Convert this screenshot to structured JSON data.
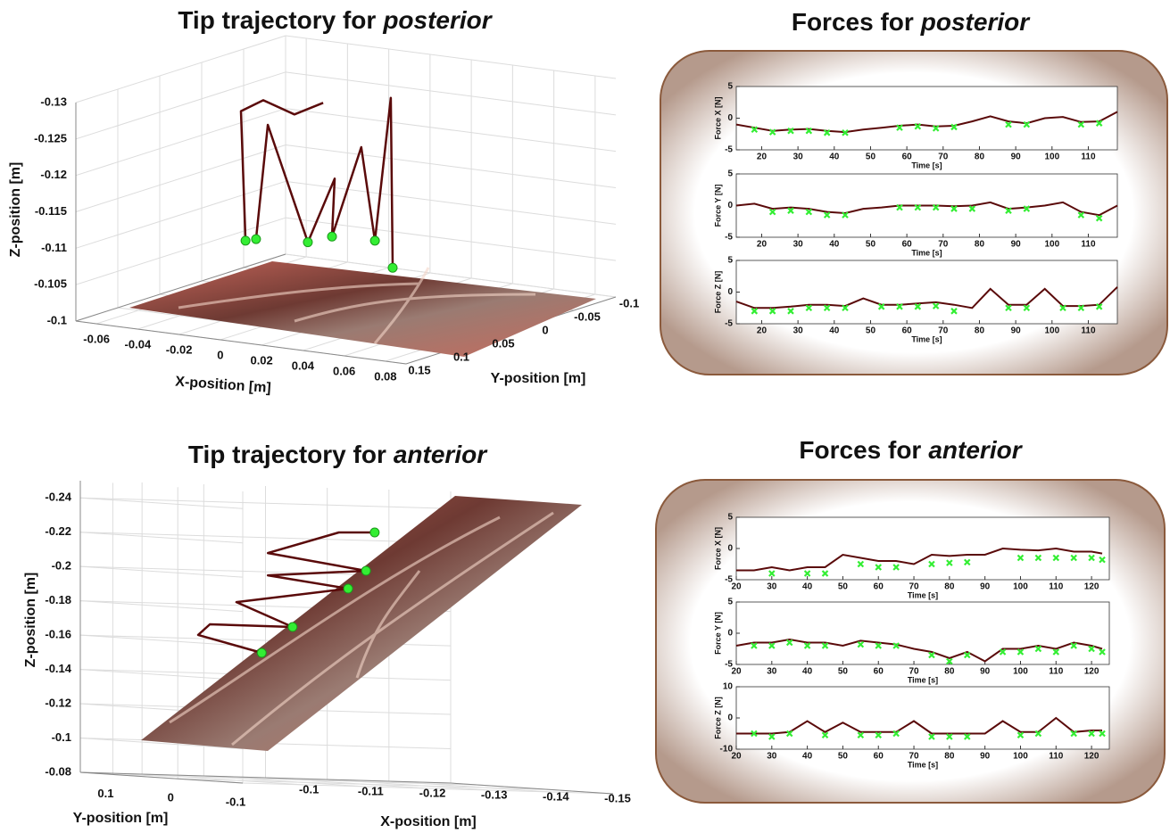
{
  "chart_data": [
    {
      "type": "line3d",
      "title": "Tip trajectory for",
      "title_italic": "posterior",
      "xlabel": "X-position [m]",
      "ylabel": "Y-position [m]",
      "zlabel": "Z-position [m]",
      "xlim": [
        -0.07,
        0.09
      ],
      "ylim": [
        -0.1,
        0.15
      ],
      "zlim": [
        -0.1,
        -0.13
      ],
      "xticks": [
        -0.06,
        -0.04,
        -0.02,
        0,
        0.02,
        0.04,
        0.06,
        0.08
      ],
      "yticks": [
        -0.1,
        -0.05,
        0,
        0.05,
        0.1,
        0.15
      ],
      "zticks": [
        -0.13,
        -0.125,
        -0.12,
        -0.115,
        -0.11,
        -0.105,
        -0.1
      ],
      "grid": true,
      "series": [
        {
          "style": "line",
          "color": "#5a0a0a",
          "x": [
            -0.0386,
            -0.0408,
            -0.03,
            -0.0149,
            -0.001,
            null,
            -0.0335,
            -0.0278,
            -0.0084,
            0.0046,
            0.0033,
            0.0175,
            0.0241,
            0.0318,
            0.0327
          ],
          "y": [
            0.025,
            0.025,
            0.025,
            0.025,
            0.025,
            null,
            0.025,
            0.025,
            0.025,
            0.025,
            0.025,
            0.025,
            0.025,
            0.025,
            0.025
          ],
          "z": [
            -0.1076,
            -0.1253,
            -0.1272,
            -0.1258,
            -0.1279,
            null,
            -0.108,
            -0.1239,
            -0.1085,
            -0.1177,
            -0.1097,
            -0.1225,
            -0.1099,
            -0.1298,
            -0.1065
          ]
        },
        {
          "style": "markers",
          "color": "#33ee33",
          "x": [
            -0.0386,
            -0.0335,
            -0.0084,
            0.0033,
            0.0241,
            0.0327
          ],
          "y": [
            0.025,
            0.025,
            0.025,
            0.025,
            0.025,
            0.025
          ],
          "z": [
            -0.1076,
            -0.108,
            -0.1085,
            -0.1097,
            -0.1099,
            -0.1065
          ]
        }
      ]
    },
    {
      "type": "line",
      "title": "Forces for",
      "title_italic": "posterior",
      "subplots": [
        {
          "ylabel": "Force X [N]",
          "xlabel": "Time [s]",
          "xlim": [
            13,
            118
          ],
          "ylim": [
            -5,
            5
          ],
          "xticks": [
            20,
            30,
            40,
            50,
            60,
            70,
            80,
            90,
            100,
            110
          ],
          "yticks": [
            -5,
            0,
            5
          ],
          "x": [
            13,
            18,
            23,
            28,
            33,
            38,
            43,
            48,
            53,
            58,
            63,
            68,
            73,
            78,
            83,
            88,
            93,
            98,
            103,
            108,
            113,
            118
          ],
          "series": [
            {
              "style": "line",
              "color": "#5a0a0a",
              "values": [
                -1,
                -1.5,
                -2,
                -1.8,
                -1.7,
                -2,
                -2.2,
                -1.8,
                -1.5,
                -1.2,
                -1,
                -1.3,
                -1.2,
                -0.5,
                0.3,
                -0.5,
                -0.8,
                0,
                0.2,
                -0.6,
                -0.5,
                1
              ]
            },
            {
              "style": "markers",
              "color": "#33ee33",
              "values": [
                null,
                -1.8,
                -2.2,
                -2,
                -2,
                -2.3,
                -2.3,
                null,
                null,
                -1.5,
                -1.3,
                -1.6,
                -1.4,
                null,
                null,
                -1,
                -1,
                null,
                null,
                -1,
                -0.8,
                null
              ]
            }
          ]
        },
        {
          "ylabel": "Force Y [N]",
          "xlabel": "Time [s]",
          "xlim": [
            13,
            118
          ],
          "ylim": [
            -5,
            5
          ],
          "xticks": [
            20,
            30,
            40,
            50,
            60,
            70,
            80,
            90,
            100,
            110
          ],
          "yticks": [
            -5,
            0,
            5
          ],
          "x": [
            13,
            18,
            23,
            28,
            33,
            38,
            43,
            48,
            53,
            58,
            63,
            68,
            73,
            78,
            83,
            88,
            93,
            98,
            103,
            108,
            113,
            118
          ],
          "series": [
            {
              "style": "line",
              "color": "#5a0a0a",
              "values": [
                0,
                0.3,
                -0.5,
                -0.3,
                -0.5,
                -1,
                -1.2,
                -0.5,
                -0.3,
                0,
                0,
                0,
                -0.1,
                0,
                0.5,
                -0.5,
                -0.3,
                0,
                0.5,
                -1,
                -1.5,
                0
              ]
            },
            {
              "style": "markers",
              "color": "#33ee33",
              "values": [
                null,
                null,
                -1,
                -0.8,
                -1,
                -1.5,
                -1.5,
                null,
                null,
                -0.3,
                -0.3,
                -0.3,
                -0.5,
                -0.5,
                null,
                -0.8,
                -0.5,
                null,
                null,
                -1.5,
                -2,
                null
              ]
            }
          ]
        },
        {
          "ylabel": "Force Z [N]",
          "xlabel": "Time [s]",
          "xlim": [
            13,
            118
          ],
          "ylim": [
            -5,
            5
          ],
          "xticks": [
            20,
            30,
            40,
            50,
            60,
            70,
            80,
            90,
            100,
            110
          ],
          "yticks": [
            -5,
            0,
            5
          ],
          "x": [
            13,
            18,
            23,
            28,
            33,
            38,
            43,
            48,
            53,
            58,
            63,
            68,
            73,
            78,
            83,
            88,
            93,
            98,
            103,
            108,
            113,
            118
          ],
          "series": [
            {
              "style": "line",
              "color": "#5a0a0a",
              "values": [
                -1.5,
                -2.5,
                -2.5,
                -2.3,
                -2,
                -2,
                -2.2,
                -1,
                -2,
                -2,
                -1.8,
                -1.6,
                -2,
                -2.5,
                0.5,
                -2,
                -2,
                0.5,
                -2.2,
                -2.2,
                -2,
                0.8
              ]
            },
            {
              "style": "markers",
              "color": "#33ee33",
              "values": [
                null,
                -3,
                -3,
                -3,
                -2.5,
                -2.5,
                -2.5,
                null,
                -2.3,
                -2.3,
                -2.3,
                -2.2,
                -3,
                null,
                null,
                -2.5,
                -2.5,
                null,
                -2.5,
                -2.5,
                -2.3,
                null
              ]
            }
          ]
        }
      ]
    },
    {
      "type": "line3d",
      "title": "Tip trajectory for",
      "title_italic": "anterior",
      "xlabel": "X-position [m]",
      "ylabel": "Y-position [m]",
      "zlabel": "Z-position [m]",
      "xlim": [
        -0.09,
        -0.15
      ],
      "ylim": [
        -0.1,
        0.15
      ],
      "zlim": [
        -0.08,
        -0.25
      ],
      "xticks": [
        -0.1,
        -0.11,
        -0.12,
        -0.13,
        -0.14,
        -0.15
      ],
      "yticks": [
        -0.1,
        0,
        0.1
      ],
      "zticks": [
        -0.24,
        -0.22,
        -0.2,
        -0.18,
        -0.16,
        -0.14,
        -0.12,
        -0.1,
        -0.08
      ],
      "grid": true,
      "series": [
        {
          "style": "line",
          "color": "#5a0a0a",
          "x": [
            -0.1036,
            -0.0933,
            -0.0952,
            -0.1086,
            -0.0995,
            -0.1176,
            -0.1046,
            -0.1205,
            -0.1046,
            -0.1161,
            -0.1219
          ],
          "y": [
            0,
            0,
            0,
            0,
            0,
            0,
            0,
            0,
            0,
            0,
            0
          ],
          "z": [
            -0.1548,
            -0.1642,
            -0.1706,
            -0.1704,
            -0.184,
            -0.1937,
            -0.2001,
            -0.2044,
            -0.2131,
            -0.2263,
            -0.2269
          ]
        },
        {
          "style": "markers",
          "color": "#33ee33",
          "x": [
            -0.1036,
            -0.1086,
            -0.1176,
            -0.1205,
            -0.1219
          ],
          "y": [
            0,
            0,
            0,
            0,
            0
          ],
          "z": [
            -0.1548,
            -0.1704,
            -0.1937,
            -0.2044,
            -0.2269
          ]
        }
      ]
    },
    {
      "type": "line",
      "title": "Forces for",
      "title_italic": "anterior",
      "subplots": [
        {
          "ylabel": "Force X [N]",
          "xlabel": "Time [s]",
          "xlim": [
            20,
            125
          ],
          "ylim": [
            -5,
            5
          ],
          "xticks": [
            20,
            30,
            40,
            50,
            60,
            70,
            80,
            90,
            100,
            110,
            120
          ],
          "yticks": [
            -5,
            0,
            5
          ],
          "x": [
            20,
            25,
            30,
            35,
            40,
            45,
            50,
            55,
            60,
            65,
            70,
            75,
            80,
            85,
            90,
            95,
            100,
            105,
            110,
            115,
            120,
            123
          ],
          "series": [
            {
              "style": "line",
              "color": "#5a0a0a",
              "values": [
                -3.5,
                -3.5,
                -3,
                -3.5,
                -3,
                -3,
                -1,
                -1.5,
                -2,
                -2,
                -2.5,
                -1,
                -1.2,
                -1,
                -1,
                0,
                -0.2,
                -0.3,
                0,
                -0.5,
                -0.5,
                -0.8
              ]
            },
            {
              "style": "markers",
              "color": "#33ee33",
              "values": [
                null,
                null,
                -4,
                null,
                -4,
                -4,
                null,
                -2.5,
                -3,
                -3,
                null,
                -2.5,
                -2.3,
                -2.2,
                null,
                null,
                -1.5,
                -1.5,
                -1.5,
                -1.5,
                -1.5,
                -1.8
              ]
            }
          ]
        },
        {
          "ylabel": "Force Y [N]",
          "xlabel": "Time [s]",
          "xlim": [
            20,
            125
          ],
          "ylim": [
            -5,
            5
          ],
          "xticks": [
            20,
            30,
            40,
            50,
            60,
            70,
            80,
            90,
            100,
            110,
            120
          ],
          "yticks": [
            -5,
            0,
            5
          ],
          "x": [
            20,
            25,
            30,
            35,
            40,
            45,
            50,
            55,
            60,
            65,
            70,
            75,
            80,
            85,
            90,
            95,
            100,
            105,
            110,
            115,
            120,
            123
          ],
          "series": [
            {
              "style": "line",
              "color": "#5a0a0a",
              "values": [
                -2,
                -1.5,
                -1.5,
                -1,
                -1.5,
                -1.5,
                -2,
                -1.2,
                -1.5,
                -1.8,
                -2.5,
                -3,
                -4,
                -3,
                -4.5,
                -2.5,
                -2.5,
                -2,
                -2.5,
                -1.5,
                -2,
                -2.5
              ]
            },
            {
              "style": "markers",
              "color": "#33ee33",
              "values": [
                null,
                -2,
                -2,
                -1.5,
                -2,
                -2,
                null,
                -1.8,
                -2,
                -2,
                null,
                -3.5,
                -4.5,
                -3.5,
                null,
                -3,
                -3,
                -2.5,
                -3,
                -2,
                -2.5,
                -3
              ]
            }
          ]
        },
        {
          "ylabel": "Force Z [N]",
          "xlabel": "Time [s]",
          "xlim": [
            20,
            125
          ],
          "ylim": [
            -10,
            10
          ],
          "xticks": [
            20,
            30,
            40,
            50,
            60,
            70,
            80,
            90,
            100,
            110,
            120
          ],
          "yticks": [
            -10,
            0,
            10
          ],
          "x": [
            20,
            25,
            30,
            35,
            40,
            45,
            50,
            55,
            60,
            65,
            70,
            75,
            80,
            85,
            90,
            95,
            100,
            105,
            110,
            115,
            120,
            123
          ],
          "series": [
            {
              "style": "line",
              "color": "#5a0a0a",
              "values": [
                -5,
                -5,
                -5,
                -4.5,
                -1,
                -4.5,
                -1.5,
                -4.5,
                -4.5,
                -4.5,
                -1,
                -5,
                -5,
                -5,
                -5,
                -1,
                -4.5,
                -4.5,
                0,
                -4.5,
                -4,
                -4
              ]
            },
            {
              "style": "markers",
              "color": "#33ee33",
              "values": [
                null,
                -5,
                -6,
                -5,
                null,
                -5.5,
                null,
                -5.5,
                -5.5,
                -5,
                null,
                -6,
                -6,
                -6,
                null,
                null,
                -5.5,
                -5,
                null,
                -5,
                -5,
                -5
              ]
            }
          ]
        }
      ]
    }
  ]
}
